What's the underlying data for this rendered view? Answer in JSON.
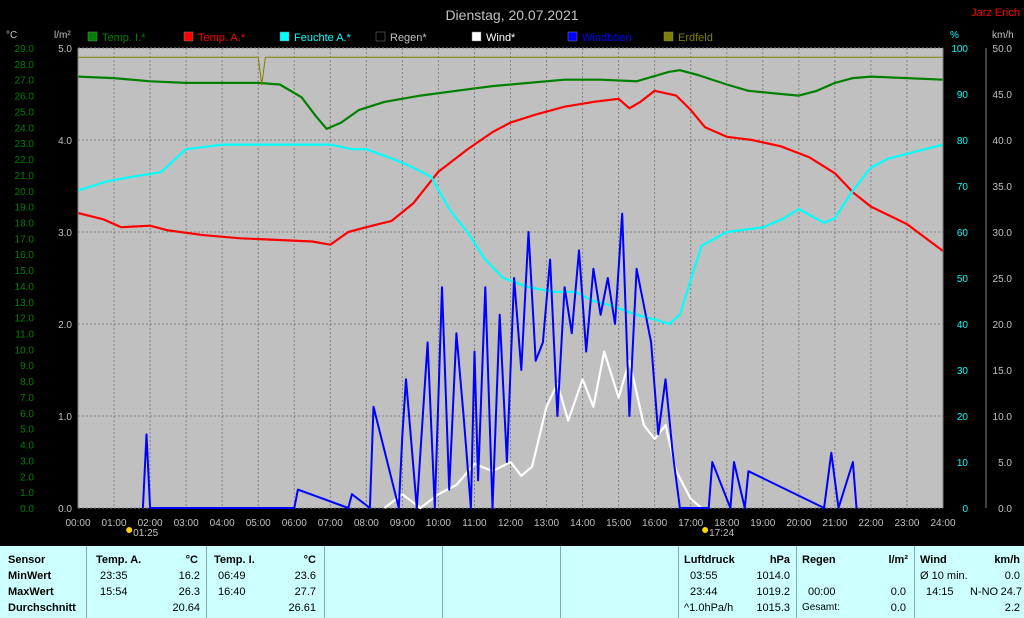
{
  "title": "Dienstag, 20.07.2021",
  "author": "Jarz Erich",
  "unit_labels": {
    "temp": "°C",
    "rain": "l/m²",
    "humidity": "%",
    "wind": "km/h"
  },
  "legend": [
    {
      "label": "Temp. I.*",
      "color": "#008000"
    },
    {
      "label": "Temp. A.*",
      "color": "#ff0000"
    },
    {
      "label": "Feuchte A.*",
      "color": "#00ffff"
    },
    {
      "label": "Regen*",
      "color": "#000000"
    },
    {
      "label": "Wind*",
      "color": "#ffffff"
    },
    {
      "label": "Windböen",
      "color": "#0000ff"
    },
    {
      "label": "Erdfeld",
      "color": "#808000"
    }
  ],
  "colors": {
    "plot_bg": "#c0c0c0",
    "grid": "#808080",
    "temp_axis": "#008000",
    "hum_axis": "#00ffff",
    "panel_bg": "#ccffff"
  },
  "chart_data": {
    "type": "line",
    "title": "Dienstag, 20.07.2021",
    "x_ticks": [
      "00:00",
      "01:00",
      "02:00",
      "03:00",
      "04:00",
      "05:00",
      "06:00",
      "07:00",
      "08:00",
      "09:00",
      "10:00",
      "11:00",
      "12:00",
      "13:00",
      "14:00",
      "15:00",
      "16:00",
      "17:00",
      "18:00",
      "19:00",
      "20:00",
      "21:00",
      "22:00",
      "23:00",
      "24:00"
    ],
    "x_unit": "hours",
    "xlim": [
      0,
      24
    ],
    "y_axes": {
      "temp": {
        "label": "°C",
        "ylim": [
          0,
          29
        ],
        "ticks": [
          "0.0",
          "1.0",
          "2.0",
          "3.0",
          "4.0",
          "5.0",
          "6.0",
          "7.0",
          "8.0",
          "9.0",
          "10.0",
          "11.0",
          "12.0",
          "13.0",
          "14.0",
          "15.0",
          "16.0",
          "17.0",
          "18.0",
          "19.0",
          "20.0",
          "21.0",
          "22.0",
          "23.0",
          "24.0",
          "25.0",
          "26.0",
          "27.0",
          "28.0",
          "29.0"
        ]
      },
      "rain": {
        "label": "l/m²",
        "ylim": [
          0,
          5
        ],
        "ticks": [
          "0.0",
          "1.0",
          "2.0",
          "3.0",
          "4.0",
          "5.0"
        ]
      },
      "humidity": {
        "label": "%",
        "ylim": [
          0,
          100
        ],
        "ticks": [
          "0",
          "10",
          "20",
          "30",
          "40",
          "50",
          "60",
          "70",
          "80",
          "90",
          "100"
        ]
      },
      "wind": {
        "label": "km/h",
        "ylim": [
          0,
          50
        ],
        "ticks": [
          "0.0",
          "5.0",
          "10.0",
          "15.0",
          "20.0",
          "25.0",
          "30.0",
          "35.0",
          "40.0",
          "45.0",
          "50.0"
        ]
      }
    },
    "markers": [
      {
        "label": "01:25",
        "x": 1.42
      },
      {
        "label": "17:24",
        "x": 17.4
      }
    ],
    "grid": true,
    "legend_position": "top",
    "series": [
      {
        "name": "Temp. I.*",
        "axis": "temp",
        "color": "#008000",
        "x": [
          0,
          1,
          2,
          3,
          5,
          5.6,
          6.2,
          6.6,
          6.9,
          7.3,
          7.8,
          8.5,
          9.5,
          10.5,
          11.5,
          12.5,
          13.5,
          14.5,
          15.5,
          16.4,
          16.7,
          17.2,
          18,
          18.6,
          19.5,
          20,
          20.5,
          21,
          21.5,
          22,
          23,
          24
        ],
        "y": [
          27.2,
          27.1,
          26.9,
          26.8,
          26.8,
          26.7,
          25.9,
          24.7,
          23.9,
          24.3,
          25.1,
          25.6,
          26.0,
          26.3,
          26.6,
          26.8,
          27.0,
          27.0,
          26.9,
          27.5,
          27.6,
          27.3,
          26.7,
          26.3,
          26.1,
          26.0,
          26.3,
          26.8,
          27.1,
          27.2,
          27.1,
          27.0
        ]
      },
      {
        "name": "Temp. A.*",
        "axis": "temp",
        "color": "#ff0000",
        "x": [
          0,
          0.7,
          1.2,
          2,
          2.5,
          3.5,
          4.5,
          5.5,
          6.5,
          7.0,
          7.5,
          8,
          8.7,
          9.3,
          10,
          10.8,
          11.5,
          12,
          12.7,
          13.5,
          14.3,
          15,
          15.3,
          15.6,
          16,
          16.6,
          17,
          17.4,
          18,
          18.7,
          19.5,
          20.3,
          21,
          21.5,
          22,
          23,
          24
        ],
        "y": [
          18.6,
          18.2,
          17.7,
          17.8,
          17.5,
          17.2,
          17.0,
          16.9,
          16.8,
          16.6,
          17.4,
          17.7,
          18.1,
          19.2,
          21.2,
          22.6,
          23.7,
          24.3,
          24.8,
          25.3,
          25.6,
          25.8,
          25.2,
          25.6,
          26.3,
          26.0,
          25.1,
          24.0,
          23.4,
          23.2,
          22.8,
          22.1,
          21.1,
          19.9,
          19.0,
          17.9,
          16.2
        ]
      },
      {
        "name": "Feuchte A.*",
        "axis": "humidity",
        "color": "#00ffff",
        "x": [
          0,
          0.8,
          1.5,
          2.3,
          3,
          4,
          5,
          6,
          7,
          7.6,
          8,
          8.7,
          9.3,
          9.8,
          10.3,
          10.8,
          11.3,
          11.8,
          12.5,
          13.2,
          13.8,
          14.3,
          14.8,
          15.5,
          16,
          16.4,
          16.7,
          17.3,
          18,
          19,
          19.6,
          20,
          20.7,
          21,
          21.5,
          22,
          22.5,
          23.5,
          24
        ],
        "y": [
          69,
          71,
          72,
          73,
          78,
          79,
          79,
          79,
          79,
          78,
          78,
          76,
          74,
          72,
          65,
          60,
          54,
          50,
          48,
          47,
          47,
          45,
          44,
          42,
          41,
          40,
          42,
          57,
          60,
          61,
          63,
          65,
          62,
          63,
          69,
          74,
          76,
          78,
          79
        ]
      },
      {
        "name": "Wind*",
        "axis": "wind",
        "color": "#ffffff",
        "x": [
          8.5,
          9,
          9.5,
          10,
          10.5,
          11,
          11.5,
          12,
          12.3,
          12.6,
          13,
          13.3,
          13.6,
          14,
          14.3,
          14.6,
          15,
          15.3,
          15.7,
          16,
          16.3,
          16.6,
          17,
          17.3
        ],
        "y": [
          0,
          1.5,
          0,
          1.5,
          2.5,
          4.8,
          4.0,
          5.0,
          3.5,
          4.5,
          11.0,
          13.5,
          9.5,
          14.0,
          11.0,
          17.0,
          12.0,
          16.0,
          9.0,
          7.5,
          9.0,
          4.0,
          1.0,
          0
        ]
      },
      {
        "name": "Windböen",
        "axis": "wind",
        "color": "#0000ff",
        "x": [
          1.8,
          1.9,
          2.0,
          6.0,
          6.1,
          7.5,
          7.6,
          8.1,
          8.2,
          8.9,
          9.0,
          9.1,
          9.4,
          9.5,
          9.7,
          9.9,
          10.1,
          10.3,
          10.5,
          10.7,
          10.9,
          11.0,
          11.1,
          11.3,
          11.5,
          11.7,
          11.9,
          12.1,
          12.3,
          12.5,
          12.7,
          12.9,
          13.1,
          13.3,
          13.5,
          13.7,
          13.9,
          14.1,
          14.3,
          14.5,
          14.7,
          14.9,
          15.1,
          15.3,
          15.5,
          15.7,
          15.9,
          16.1,
          16.3,
          16.5,
          16.7,
          16.9,
          17.1,
          17.5,
          17.6,
          18.1,
          18.2,
          18.5,
          18.6,
          20.7,
          20.9,
          21.1,
          21.5,
          21.6
        ],
        "y": [
          0,
          8.0,
          0,
          0,
          2.0,
          0,
          1.5,
          0,
          11.0,
          0,
          8.0,
          14.0,
          0,
          6.0,
          18.0,
          0,
          24.0,
          2.0,
          19.0,
          10.0,
          0,
          17.0,
          3.0,
          24.0,
          0,
          21.0,
          5.0,
          25.0,
          15.0,
          30.0,
          16.0,
          18.0,
          27.0,
          10.0,
          24.0,
          19.0,
          28.0,
          17.0,
          26.0,
          21.0,
          25.0,
          20.0,
          32.0,
          10.0,
          26.0,
          22.0,
          18.0,
          8.0,
          14.0,
          6.0,
          0,
          0,
          0,
          0,
          5.0,
          0,
          5.0,
          0,
          4.0,
          0,
          6.0,
          0,
          5.0,
          0
        ]
      },
      {
        "name": "Erdfeld",
        "axis": "humidity",
        "color": "#808000",
        "x": [
          0,
          0.5,
          1,
          1.5,
          2,
          3,
          4,
          5,
          5.1,
          5.2,
          6,
          7,
          8,
          9,
          10,
          11,
          12,
          13,
          14,
          15,
          16,
          17,
          18,
          19,
          20,
          21,
          22,
          23,
          24
        ],
        "y": [
          98,
          98,
          98,
          98,
          98,
          98,
          98,
          98,
          92,
          98,
          98,
          98,
          98,
          98,
          98,
          98,
          98,
          98,
          98,
          98,
          98,
          98,
          98,
          98,
          98,
          98,
          98,
          98,
          98
        ]
      }
    ]
  },
  "stats": {
    "sensor": {
      "header": "Sensor",
      "rows": [
        "MinWert",
        "MaxWert",
        "Durchschnitt"
      ]
    },
    "temp_a": {
      "header": "Temp. A.",
      "unit": "°C",
      "min_time": "23:35",
      "min_val": "16.2",
      "max_time": "15:54",
      "max_val": "26.3",
      "avg": "20.64"
    },
    "temp_i": {
      "header": "Temp. I.",
      "unit": "°C",
      "min_time": "06:49",
      "min_val": "23.6",
      "max_time": "16:40",
      "max_val": "27.7",
      "avg": "26.61"
    },
    "pressure": {
      "header": "Luftdruck",
      "unit": "hPa",
      "min_time": "03:55",
      "min_val": "1014.0",
      "max_time": "23:44",
      "max_val": "1019.2",
      "trend_label": "^1.0hPa/h",
      "trend_val": "1015.3"
    },
    "rain": {
      "header": "Regen",
      "unit": "l/m²",
      "row2_time": "00:00",
      "row2_val": "0.0",
      "total_label": "Gesamt:",
      "total_val": "0.0"
    },
    "wind": {
      "header": "Wind",
      "unit": "km/h",
      "avg_label": "Ø 10 min.",
      "avg_val": "0.0",
      "max_time": "14:15",
      "max_dir": "N-NO",
      "max_val": "24.7",
      "row3_val": "2.2"
    }
  }
}
